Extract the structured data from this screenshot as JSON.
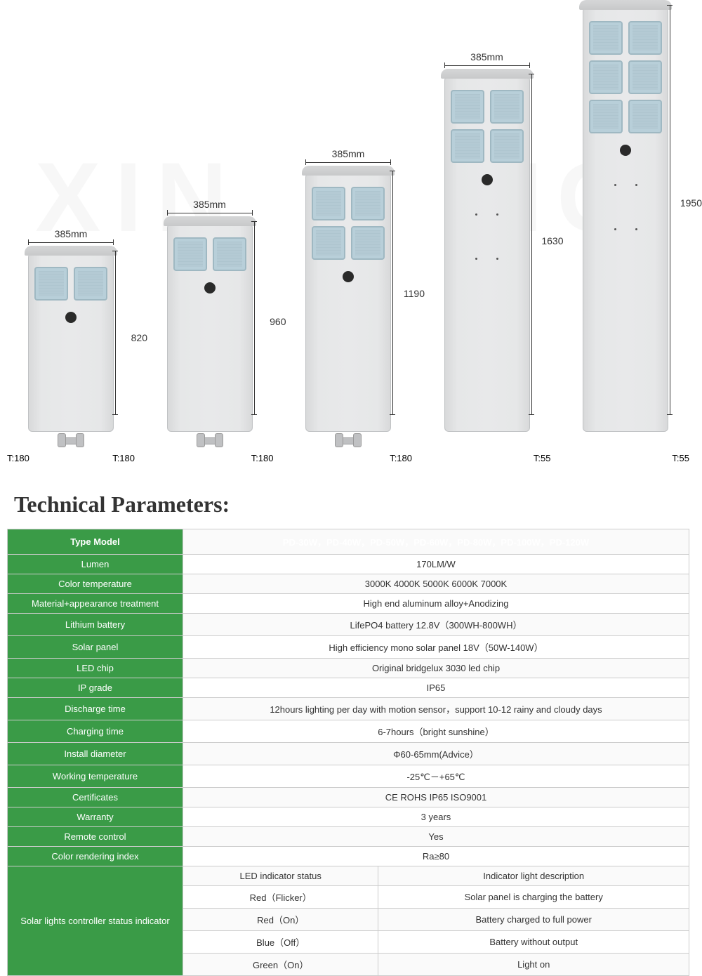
{
  "products": [
    {
      "width": "385mm",
      "height": "820",
      "body_h": 258,
      "body_w": 122,
      "led_rows": 1,
      "led_cols": 2,
      "t_left": "T:180",
      "t_right": "T:180",
      "mount": true,
      "dots": 0,
      "sensor": true
    },
    {
      "width": "385mm",
      "height": "960",
      "body_h": 300,
      "body_w": 122,
      "led_rows": 1,
      "led_cols": 2,
      "t_left": "",
      "t_right": "T:180",
      "mount": true,
      "dots": 0,
      "sensor": true
    },
    {
      "width": "385mm",
      "height": "1190",
      "body_h": 372,
      "body_w": 122,
      "led_rows": 2,
      "led_cols": 2,
      "t_left": "",
      "t_right": "T:180",
      "mount": true,
      "dots": 0,
      "sensor": true
    },
    {
      "width": "385mm",
      "height": "1630",
      "body_h": 510,
      "body_w": 122,
      "led_rows": 2,
      "led_cols": 2,
      "t_left": "",
      "t_right": "T:55",
      "mount": false,
      "dots": 2,
      "sensor": true
    },
    {
      "width": "385mm",
      "height": "1950",
      "body_h": 608,
      "body_w": 122,
      "led_rows": 3,
      "led_cols": 2,
      "t_left": "",
      "t_right": "T:55",
      "mount": false,
      "dots": 2,
      "sensor": true
    }
  ],
  "title": "Technical Parameters:",
  "table": {
    "header": {
      "label": "Type Model",
      "value": "PD-30W，PD-40W，PD-50W，PD-60W，PD-80W，PD-100W，PD-120W"
    },
    "rows": [
      {
        "label": "Lumen",
        "value": "170LM/W"
      },
      {
        "label": "Color temperature",
        "value": "3000K   4000K   5000K   6000K   7000K"
      },
      {
        "label": "Material+appearance treatment",
        "value": "High end aluminum alloy+Anodizing"
      },
      {
        "label": "Lithium battery",
        "value": "LifePO4 battery 12.8V（300WH-800WH）"
      },
      {
        "label": "Solar panel",
        "value": "High efficiency mono solar panel 18V（50W-140W）"
      },
      {
        "label": "LED chip",
        "value": "Original bridgelux 3030 led chip"
      },
      {
        "label": "IP grade",
        "value": "IP65"
      },
      {
        "label": "Discharge time",
        "value": "12hours lighting per day with motion sensor，support 10-12 rainy and cloudy days"
      },
      {
        "label": "Charging time",
        "value": "6-7hours（bright sunshine）"
      },
      {
        "label": "Install diameter",
        "value": "Φ60-65mm(Advice）"
      },
      {
        "label": "Working temperature",
        "value": "-25℃－+65℃"
      },
      {
        "label": "Certificates",
        "value": "CE   ROHS   IP65 ISO9001"
      },
      {
        "label": "Warranty",
        "value": "3 years"
      },
      {
        "label": "Remote control",
        "value": "Yes"
      },
      {
        "label": "Color rendering index",
        "value": "Ra≥80"
      }
    ],
    "status": {
      "label": "Solar lights controller status indicator",
      "col1_header": "LED indicator status",
      "col2_header": "Indicator light description",
      "rows": [
        {
          "status": "Red（Flicker）",
          "desc": "Solar panel is charging the battery"
        },
        {
          "status": "Red（On）",
          "desc": "Battery charged to full power"
        },
        {
          "status": "Blue（Off）",
          "desc": "Battery without output"
        },
        {
          "status": "Green（On）",
          "desc": "Light on"
        }
      ]
    }
  },
  "colors": {
    "green": "#3a9b47",
    "border": "#cccccc",
    "body_bg": "#e6e7e8"
  }
}
